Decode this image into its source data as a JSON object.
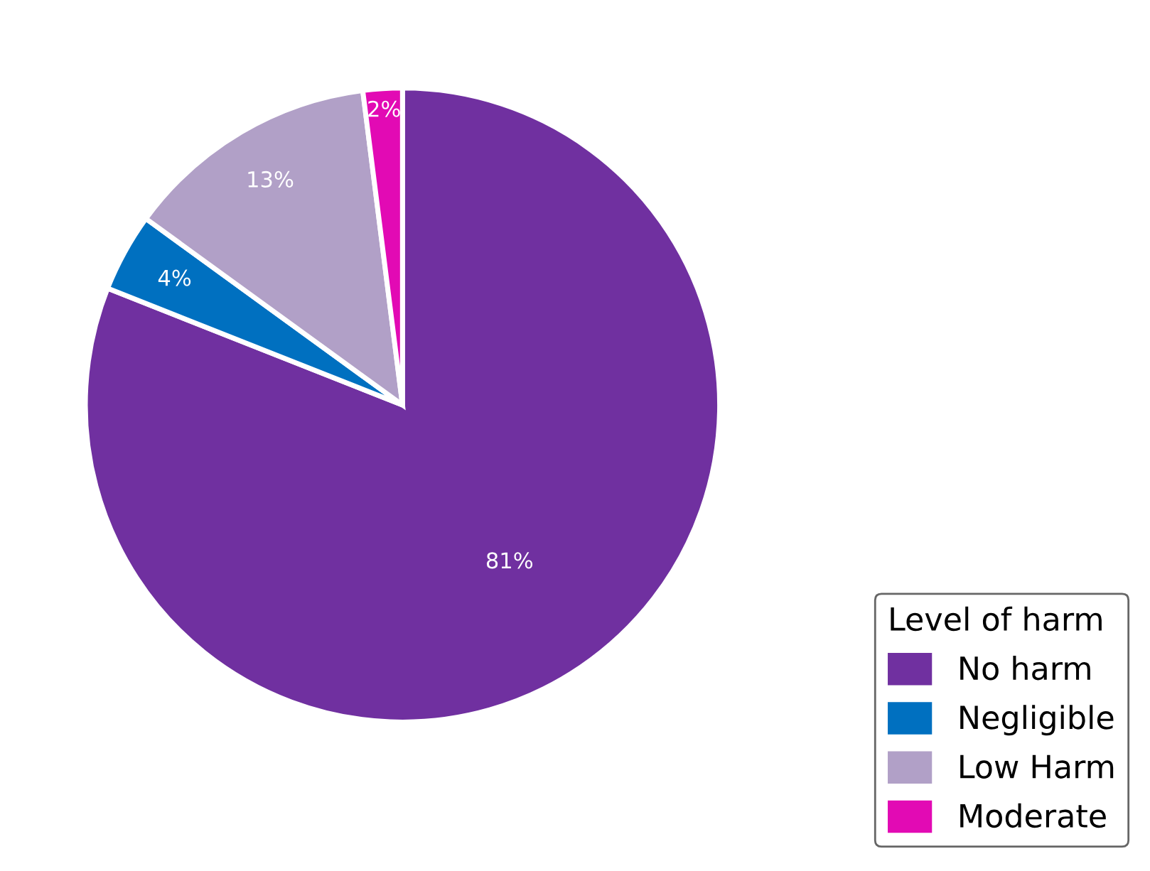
{
  "chart_data": {
    "type": "pie",
    "categories": [
      "No harm",
      "Negligible",
      "Low Harm",
      "Moderate"
    ],
    "values": [
      81,
      4,
      13,
      2
    ],
    "colors": [
      "#7030a0",
      "#0070c0",
      "#b1a0c7",
      "#e20ab4"
    ],
    "value_labels": [
      "81%",
      "4%",
      "13%",
      "2%"
    ],
    "legend": "bottom right",
    "legend_title": "Level of harm"
  }
}
